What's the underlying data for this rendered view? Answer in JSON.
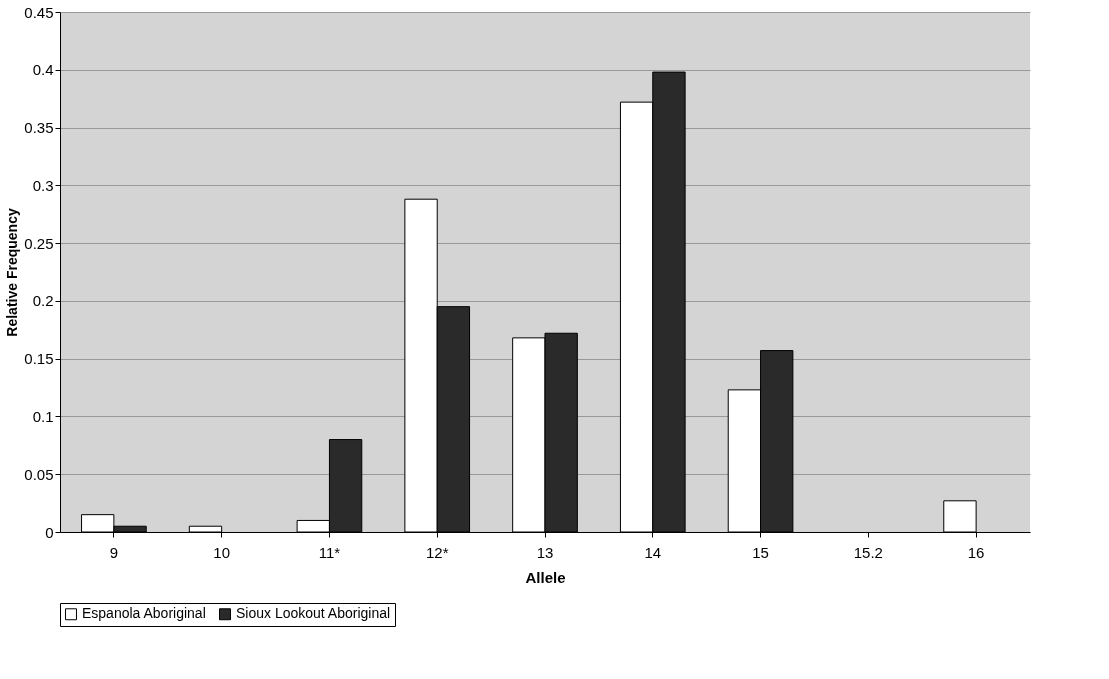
{
  "chart_data": {
    "type": "bar",
    "xlabel": "Allele",
    "ylabel": "Relative Frequency",
    "categories": [
      "9",
      "10",
      "11*",
      "12*",
      "13",
      "14",
      "15",
      "15.2",
      "16"
    ],
    "series": [
      {
        "name": "Espanola Aboriginal",
        "color": "#ffffff",
        "values": [
          0.015,
          0.005,
          0.01,
          0.288,
          0.168,
          0.372,
          0.123,
          null,
          0.027
        ]
      },
      {
        "name": "Sioux Lookout Aboriginal",
        "color": "#2a2a2a",
        "values": [
          0.005,
          null,
          0.08,
          0.195,
          0.172,
          0.398,
          0.157,
          null,
          null
        ]
      }
    ],
    "ylim": [
      0,
      0.45
    ],
    "yticks": [
      0,
      0.05,
      0.1,
      0.15,
      0.2,
      0.25,
      0.3,
      0.35,
      0.4,
      0.45
    ],
    "grid": "y",
    "legend": "bottom"
  }
}
